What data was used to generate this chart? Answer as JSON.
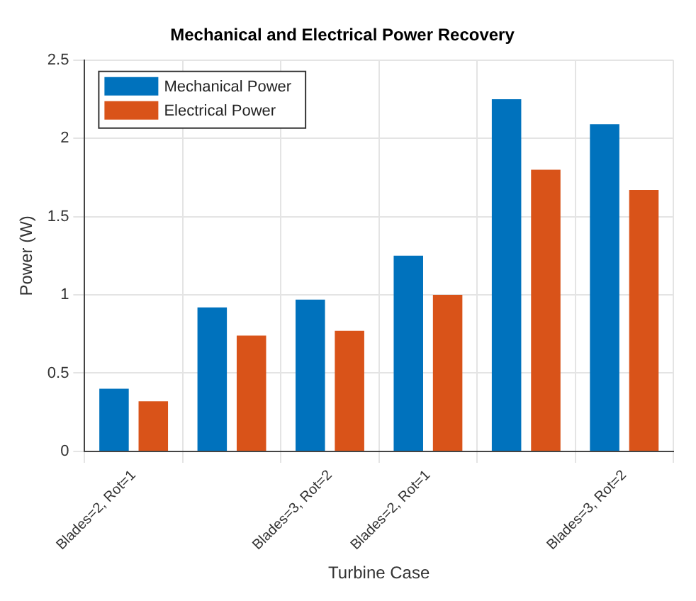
{
  "chart_data": {
    "type": "bar",
    "title": "Mechanical and Electrical Power Recovery",
    "xlabel": "Turbine Case",
    "ylabel": "Power (W)",
    "categories": [
      "Blades=2, Rot=1",
      null,
      "Blades=3, Rot=2",
      "Blades=2, Rot=1",
      null,
      "Blades=3, Rot=2"
    ],
    "series": [
      {
        "name": "Mechanical Power",
        "color": "#0072bd",
        "values": [
          0.4,
          0.92,
          0.97,
          1.25,
          2.25,
          2.09
        ]
      },
      {
        "name": "Electrical Power",
        "color": "#d95319",
        "values": [
          0.32,
          0.74,
          0.77,
          1.0,
          1.8,
          1.67
        ]
      }
    ],
    "ylim": [
      0,
      2.5
    ],
    "yticks": [
      0,
      0.5,
      1,
      1.5,
      2,
      2.5
    ],
    "grid": true,
    "legend": "top left"
  }
}
